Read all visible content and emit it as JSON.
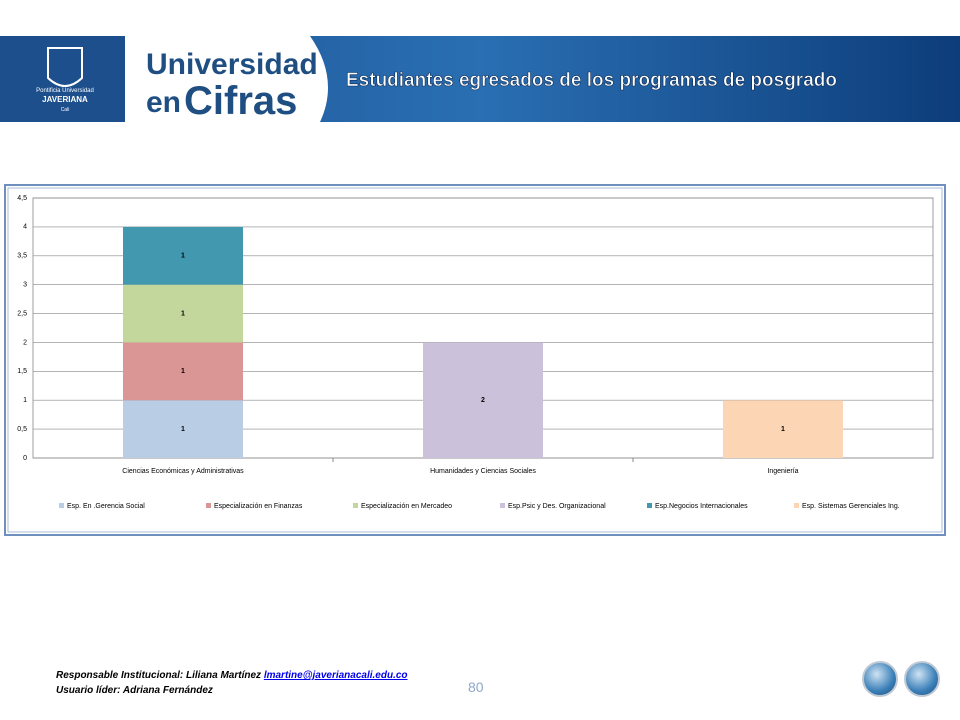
{
  "header": {
    "logo_line1": "Pontificia Universidad",
    "logo_line2": "JAVERIANA",
    "logo_line3": "Cali",
    "brand_line1": "Universidad",
    "brand_line2a": "en",
    "brand_line2b": "Cifras",
    "title": "Estudiantes egresados de los programas de posgrado"
  },
  "chart_data": {
    "type": "bar",
    "stacked": true,
    "categories": [
      "Ciencias Económicas y Administrativas",
      "Humanidades y Ciencias Sociales",
      "Ingeniería"
    ],
    "series": [
      {
        "name": "Esp. En .Gerencia Social",
        "color": "#b9cde5",
        "values": [
          1,
          null,
          null
        ]
      },
      {
        "name": "Especialización en Finanzas",
        "color": "#d99694",
        "values": [
          1,
          null,
          null
        ]
      },
      {
        "name": "Especialización en Mercadeo",
        "color": "#c3d69b",
        "values": [
          1,
          null,
          null
        ]
      },
      {
        "name": "Esp.Psic y Des. Organizacional",
        "color": "#ccc1da",
        "values": [
          null,
          2,
          null
        ]
      },
      {
        "name": "Esp.Negocios Internacionales",
        "color": "#4198af",
        "values": [
          1,
          null,
          null
        ]
      },
      {
        "name": "Esp. Sistemas Gerenciales Ing.",
        "color": "#fcd5b5",
        "values": [
          null,
          null,
          1
        ]
      }
    ],
    "ylim": [
      0,
      4.5
    ],
    "yticks": [
      0,
      {
        "value": 0.5,
        "label": "0,5"
      },
      1,
      {
        "value": 1.5,
        "label": "1,5"
      },
      2,
      {
        "value": 2.5,
        "label": "2,5"
      },
      3,
      {
        "value": 3.5,
        "label": "3,5"
      },
      4,
      {
        "value": 4.5,
        "label": "4,5"
      }
    ],
    "grid": true,
    "legend": "bottom"
  },
  "footer": {
    "responsible": "Responsable Institucional: Liliana Martínez",
    "email": "lmartine@javerianacali.edu.co",
    "leader": "Usuario líder: Adriana Fernández",
    "page": "80"
  }
}
